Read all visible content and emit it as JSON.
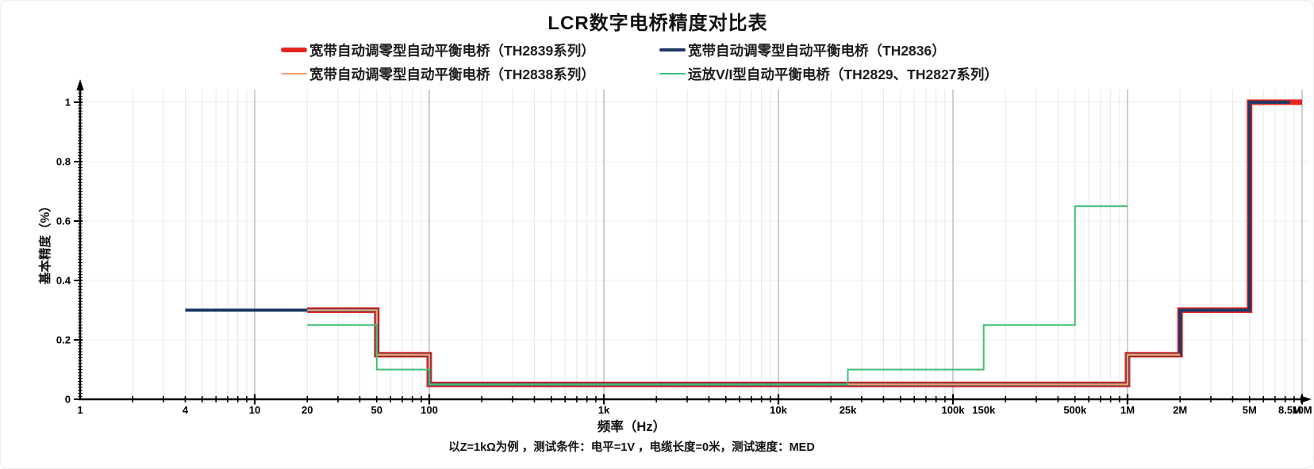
{
  "page": {
    "title": "LCR数字电桥精度对比表",
    "footnote": "以Z=1kΩ为例 ，测试条件：电平=1V ，电缆长度=0米，测试速度：MED"
  },
  "chart_data": {
    "type": "line",
    "subtype": "step",
    "title": "LCR数字电桥精度对比表",
    "xlabel": "频率（Hz）",
    "ylabel": "基本精度（%）",
    "x_scale": "log",
    "x_range": [
      1,
      10000000
    ],
    "y_range": [
      0,
      1.05
    ],
    "grid": true,
    "legend_position": "top",
    "y_ticks": [
      {
        "value": 0,
        "label": "0"
      },
      {
        "value": 0.2,
        "label": "0.2"
      },
      {
        "value": 0.4,
        "label": "0.4"
      },
      {
        "value": 0.6,
        "label": "0.6"
      },
      {
        "value": 0.8,
        "label": "0.8"
      },
      {
        "value": 1,
        "label": "1"
      }
    ],
    "x_ticks": [
      {
        "value": 1,
        "label": "1"
      },
      {
        "value": 4,
        "label": "4"
      },
      {
        "value": 10,
        "label": "10"
      },
      {
        "value": 20,
        "label": "20"
      },
      {
        "value": 50,
        "label": "50"
      },
      {
        "value": 100,
        "label": "100"
      },
      {
        "value": 1000,
        "label": "1k"
      },
      {
        "value": 10000,
        "label": "10k"
      },
      {
        "value": 25000,
        "label": "25k"
      },
      {
        "value": 100000,
        "label": "100k"
      },
      {
        "value": 150000,
        "label": "150k"
      },
      {
        "value": 500000,
        "label": "500k"
      },
      {
        "value": 1000000,
        "label": "1M"
      },
      {
        "value": 2000000,
        "label": "2M"
      },
      {
        "value": 5000000,
        "label": "5M"
      },
      {
        "value": 8500000,
        "label": "8.5M"
      },
      {
        "value": 10000000,
        "label": "10M"
      }
    ],
    "series": [
      {
        "name": "宽带自动调零型自动平衡电桥（TH2839系列）",
        "color": "#e42521",
        "line_width": 7,
        "points": [
          [
            20,
            0.3
          ],
          [
            50,
            0.3
          ],
          [
            50,
            0.15
          ],
          [
            100,
            0.15
          ],
          [
            100,
            0.05
          ],
          [
            1000000,
            0.05
          ],
          [
            1000000,
            0.15
          ],
          [
            2000000,
            0.15
          ],
          [
            2000000,
            0.3
          ],
          [
            5000000,
            0.3
          ],
          [
            5000000,
            1
          ],
          [
            10000000,
            1
          ]
        ]
      },
      {
        "name": "宽带自动调零型自动平衡电桥（TH2836）",
        "color": "#1f3864",
        "line_width": 4,
        "points": [
          [
            4,
            0.3
          ],
          [
            50,
            0.3
          ],
          [
            50,
            0.15
          ],
          [
            100,
            0.15
          ],
          [
            100,
            0.05
          ],
          [
            1000000,
            0.05
          ],
          [
            1000000,
            0.15
          ],
          [
            2000000,
            0.15
          ],
          [
            2000000,
            0.3
          ],
          [
            5000000,
            0.3
          ],
          [
            5000000,
            1
          ],
          [
            8500000,
            1
          ]
        ]
      },
      {
        "name": "宽带自动调零型自动平衡电桥（TH2838系列）",
        "color": "#f2a06c",
        "line_width": 2.5,
        "points": [
          [
            20,
            0.3
          ],
          [
            50,
            0.3
          ],
          [
            50,
            0.15
          ],
          [
            100,
            0.15
          ],
          [
            100,
            0.05
          ],
          [
            1000000,
            0.05
          ],
          [
            1000000,
            0.15
          ],
          [
            2000000,
            0.15
          ]
        ]
      },
      {
        "name": "运放V/I型自动平衡电桥（TH2829、TH2827系列）",
        "color": "#3fbe75",
        "line_width": 2,
        "points": [
          [
            20,
            0.25
          ],
          [
            50,
            0.25
          ],
          [
            50,
            0.1
          ],
          [
            100,
            0.1
          ],
          [
            100,
            0.05
          ],
          [
            25000,
            0.05
          ],
          [
            25000,
            0.1
          ],
          [
            150000,
            0.1
          ],
          [
            150000,
            0.25
          ],
          [
            500000,
            0.25
          ],
          [
            500000,
            0.65
          ],
          [
            1000000,
            0.65
          ]
        ]
      }
    ]
  }
}
